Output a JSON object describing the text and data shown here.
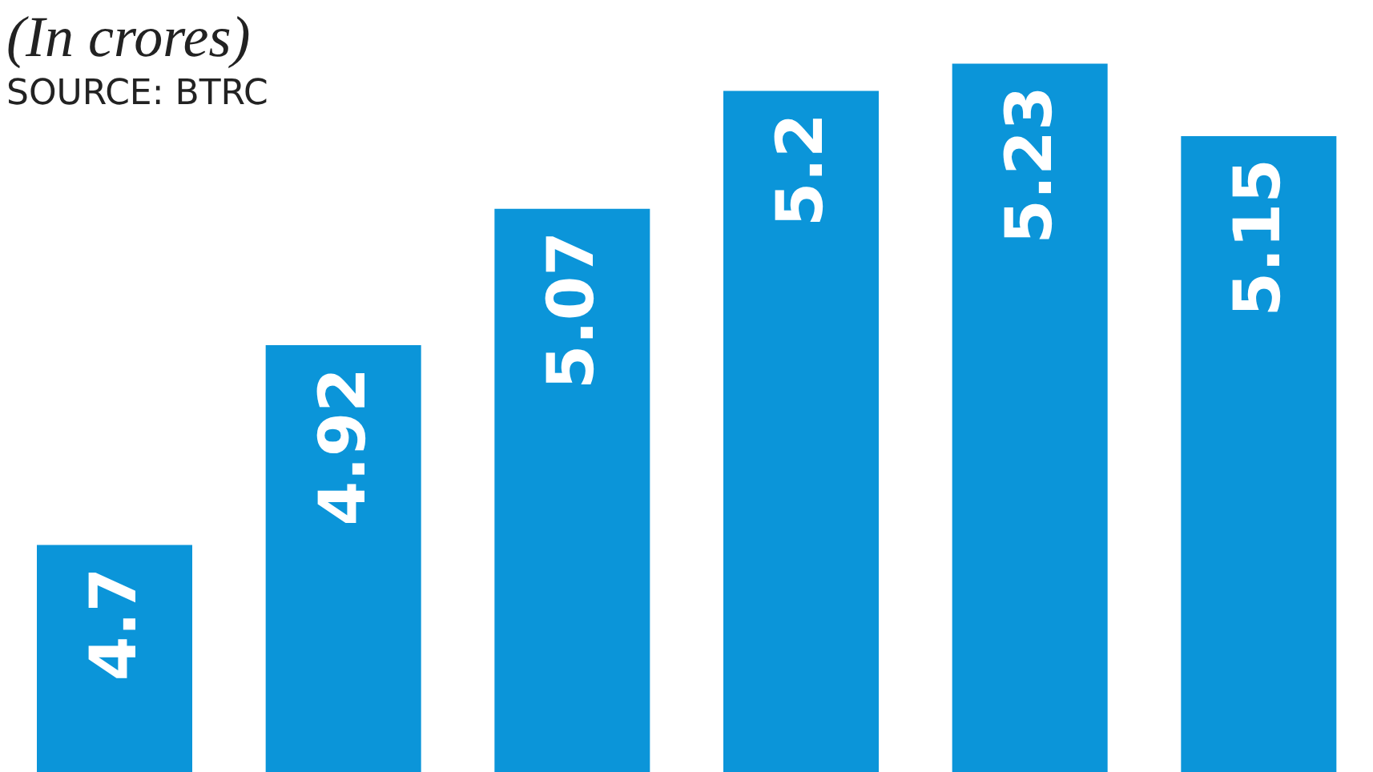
{
  "chart_data": {
    "type": "bar",
    "title": "(In crores)",
    "annotations": [
      "SOURCE: BTRC"
    ],
    "categories": [
      null,
      null,
      null,
      null,
      null,
      null
    ],
    "values": [
      4.7,
      4.92,
      5.07,
      5.2,
      5.23,
      5.15
    ],
    "color": "#0b95d9",
    "ylim": [
      4.45,
      5.3
    ],
    "data_labels": true
  }
}
